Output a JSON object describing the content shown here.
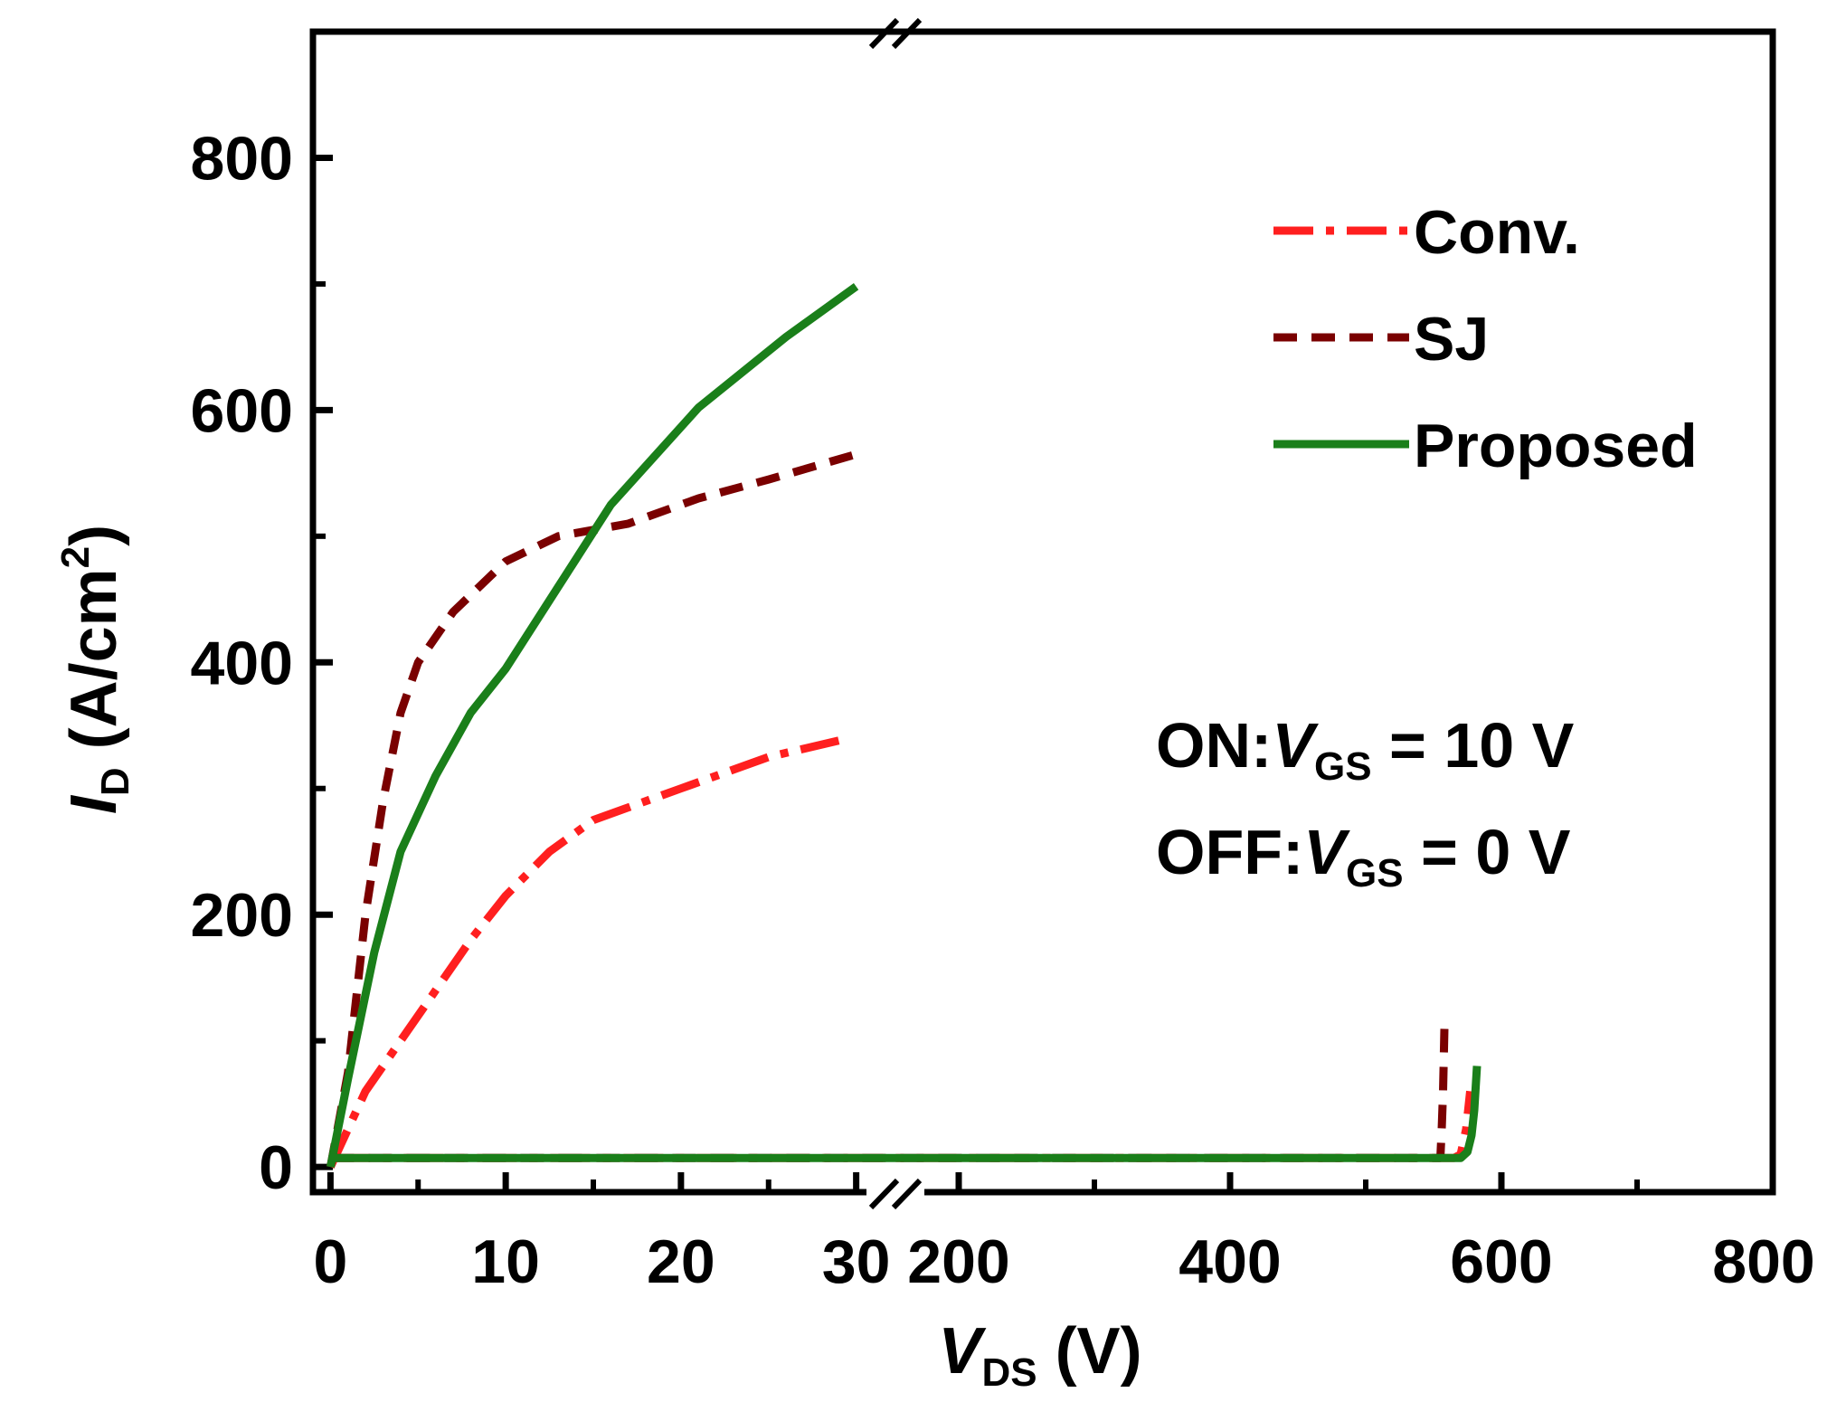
{
  "chart_data": {
    "type": "line",
    "xlabel_main": "V",
    "xlabel_sub": "DS",
    "xlabel_unit": " (V)",
    "ylabel_main": "I",
    "ylabel_sub": "D",
    "ylabel_unit": " (A/cm",
    "ylabel_sup": "2",
    "ylabel_close": ")",
    "ylim": [
      -20,
      900
    ],
    "x_left_range": [
      -1,
      31
    ],
    "x_right_range": [
      150,
      800
    ],
    "x_ticks_left": [
      "0",
      "10",
      "20",
      "30"
    ],
    "x_ticks_right": [
      "200",
      "400",
      "600",
      "800"
    ],
    "y_ticks": [
      "0",
      "200",
      "400",
      "600",
      "800"
    ],
    "series": [
      {
        "name": "Conv.",
        "color": "#ff1f1f",
        "dash": "dashdot",
        "on_state": [
          [
            0,
            0
          ],
          [
            2,
            60
          ],
          [
            5,
            120
          ],
          [
            8,
            180
          ],
          [
            10,
            215
          ],
          [
            12.5,
            250
          ],
          [
            15,
            275
          ],
          [
            20,
            300
          ],
          [
            25,
            325
          ],
          [
            29,
            338
          ]
        ],
        "off_state": [
          [
            0,
            7
          ],
          [
            30,
            7
          ],
          [
            150,
            7
          ],
          [
            565,
            7
          ],
          [
            570,
            10
          ],
          [
            574,
            30
          ],
          [
            577,
            60
          ]
        ]
      },
      {
        "name": "SJ",
        "color": "#7a0000",
        "dash": "dashed",
        "on_state": [
          [
            0,
            0
          ],
          [
            1,
            75
          ],
          [
            2,
            200
          ],
          [
            3,
            290
          ],
          [
            4,
            360
          ],
          [
            5,
            400
          ],
          [
            7,
            440
          ],
          [
            10,
            480
          ],
          [
            13,
            500
          ],
          [
            17,
            510
          ],
          [
            21,
            530
          ],
          [
            25,
            545
          ],
          [
            30,
            565
          ]
        ],
        "off_state": [
          [
            0,
            7
          ],
          [
            30,
            7
          ],
          [
            150,
            7
          ],
          [
            555,
            7
          ],
          [
            556,
            30
          ],
          [
            557,
            60
          ],
          [
            558,
            110
          ]
        ]
      },
      {
        "name": "Proposed",
        "color": "#1a7f1a",
        "dash": "solid",
        "on_state": [
          [
            0,
            0
          ],
          [
            1,
            70
          ],
          [
            2.5,
            170
          ],
          [
            4,
            250
          ],
          [
            6,
            310
          ],
          [
            8,
            360
          ],
          [
            10,
            395
          ],
          [
            13,
            460
          ],
          [
            16,
            525
          ],
          [
            21,
            602
          ],
          [
            26,
            658
          ],
          [
            30,
            698
          ]
        ],
        "off_state": [
          [
            0,
            7
          ],
          [
            30,
            7
          ],
          [
            150,
            7
          ],
          [
            570,
            7
          ],
          [
            575,
            12
          ],
          [
            578,
            25
          ],
          [
            580,
            45
          ],
          [
            582,
            80
          ]
        ]
      }
    ],
    "legend": [
      "Conv.",
      "SJ",
      "Proposed"
    ],
    "annotations": {
      "on_prefix": "ON:",
      "on_var": "V",
      "on_sub": "GS",
      "on_rest": " = 10 V",
      "off_prefix": "OFF:",
      "off_var": "V",
      "off_sub": "GS",
      "off_rest": " = 0 V"
    }
  }
}
